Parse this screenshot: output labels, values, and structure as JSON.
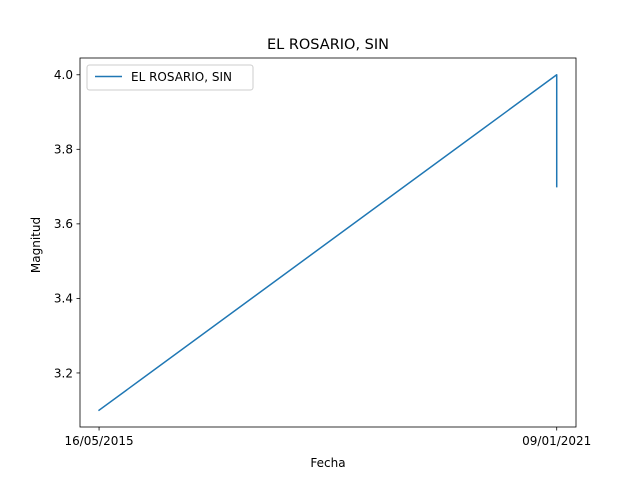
{
  "chart_data": {
    "type": "line",
    "title": "EL ROSARIO, SIN",
    "xlabel": "Fecha",
    "ylabel": "Magnitud",
    "x_ticks": [
      "16/05/2015",
      "09/01/2021"
    ],
    "y_ticks": [
      "3.2",
      "3.4",
      "3.6",
      "3.8",
      "4.0"
    ],
    "ylim": [
      3.055,
      4.045
    ],
    "xlim": [
      "2015-02-19",
      "2021-04-06"
    ],
    "grid": false,
    "legend_position": "upper left",
    "series": [
      {
        "name": "EL ROSARIO, SIN",
        "color": "#1f77b4",
        "points": [
          {
            "x": "2015-05-16",
            "y": 3.1
          },
          {
            "x": "2021-01-09",
            "y": 4.0
          },
          {
            "x": "2021-01-09",
            "y": 3.7
          }
        ]
      }
    ]
  }
}
